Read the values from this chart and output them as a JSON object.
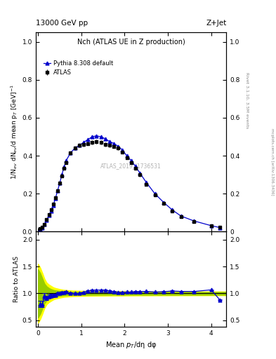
{
  "title_top": "13000 GeV pp",
  "title_right": "Z+Jet",
  "panel_title": "Nch (ATLAS UE in Z production)",
  "watermark": "ATLAS_2019_I1736531",
  "right_label": "Rivet 3.1.10, 3.5M events",
  "right_label2": "mcplots.cern.ch [arXiv:1306.3436]",
  "ylabel_main": "1/N$_{ev}$ dN$_{ev}$/d mean p$_{T}$ [GeV]$^{-1}$",
  "ylabel_ratio": "Ratio to ATLAS",
  "xlabel": "Mean $p_{T}$/dη dφ",
  "xlim": [
    -0.05,
    4.35
  ],
  "ylim_main": [
    0,
    1.05
  ],
  "ylim_ratio": [
    0.38,
    2.15
  ],
  "atlas_x": [
    0.05,
    0.1,
    0.15,
    0.2,
    0.25,
    0.3,
    0.35,
    0.4,
    0.45,
    0.5,
    0.55,
    0.6,
    0.65,
    0.75,
    0.85,
    0.95,
    1.05,
    1.15,
    1.25,
    1.35,
    1.45,
    1.55,
    1.65,
    1.75,
    1.85,
    1.95,
    2.05,
    2.15,
    2.25,
    2.35,
    2.5,
    2.7,
    2.9,
    3.1,
    3.3,
    3.6,
    4.0,
    4.2
  ],
  "atlas_y": [
    0.015,
    0.025,
    0.04,
    0.065,
    0.09,
    0.115,
    0.145,
    0.18,
    0.215,
    0.255,
    0.295,
    0.335,
    0.365,
    0.415,
    0.44,
    0.455,
    0.46,
    0.465,
    0.47,
    0.475,
    0.47,
    0.46,
    0.455,
    0.45,
    0.44,
    0.42,
    0.39,
    0.365,
    0.335,
    0.3,
    0.25,
    0.195,
    0.15,
    0.11,
    0.08,
    0.055,
    0.03,
    0.025
  ],
  "atlas_yerr": [
    0.003,
    0.003,
    0.004,
    0.005,
    0.005,
    0.006,
    0.006,
    0.007,
    0.007,
    0.008,
    0.008,
    0.009,
    0.009,
    0.009,
    0.01,
    0.01,
    0.01,
    0.01,
    0.01,
    0.01,
    0.01,
    0.01,
    0.01,
    0.01,
    0.01,
    0.01,
    0.009,
    0.009,
    0.009,
    0.009,
    0.009,
    0.008,
    0.007,
    0.007,
    0.006,
    0.006,
    0.005,
    0.005
  ],
  "pythia_x": [
    0.05,
    0.1,
    0.15,
    0.2,
    0.25,
    0.3,
    0.35,
    0.4,
    0.45,
    0.5,
    0.55,
    0.6,
    0.65,
    0.75,
    0.85,
    0.95,
    1.05,
    1.15,
    1.25,
    1.35,
    1.45,
    1.55,
    1.65,
    1.75,
    1.85,
    1.95,
    2.05,
    2.15,
    2.25,
    2.35,
    2.5,
    2.7,
    2.9,
    3.1,
    3.3,
    3.6,
    4.0,
    4.2
  ],
  "pythia_y": [
    0.012,
    0.02,
    0.038,
    0.06,
    0.085,
    0.11,
    0.14,
    0.175,
    0.215,
    0.255,
    0.3,
    0.34,
    0.375,
    0.415,
    0.44,
    0.455,
    0.47,
    0.485,
    0.5,
    0.505,
    0.5,
    0.49,
    0.475,
    0.465,
    0.45,
    0.43,
    0.4,
    0.375,
    0.345,
    0.31,
    0.26,
    0.2,
    0.155,
    0.115,
    0.083,
    0.057,
    0.032,
    0.022
  ],
  "ratio_y": [
    0.8,
    0.8,
    0.95,
    0.92,
    0.944,
    0.957,
    0.966,
    0.972,
    1.0,
    1.0,
    1.017,
    1.015,
    1.027,
    1.0,
    1.0,
    1.0,
    1.022,
    1.043,
    1.064,
    1.063,
    1.064,
    1.065,
    1.044,
    1.033,
    1.023,
    1.024,
    1.026,
    1.027,
    1.03,
    1.033,
    1.04,
    1.026,
    1.033,
    1.045,
    1.038,
    1.036,
    1.067,
    0.88
  ],
  "ratio_yerr": [
    0.06,
    0.06,
    0.05,
    0.04,
    0.035,
    0.03,
    0.025,
    0.022,
    0.02,
    0.018,
    0.016,
    0.015,
    0.014,
    0.013,
    0.012,
    0.011,
    0.011,
    0.011,
    0.011,
    0.011,
    0.011,
    0.011,
    0.011,
    0.011,
    0.011,
    0.011,
    0.011,
    0.011,
    0.011,
    0.011,
    0.01,
    0.01,
    0.01,
    0.01,
    0.01,
    0.01,
    0.01,
    0.01
  ],
  "band_x": [
    0.0,
    0.05,
    0.1,
    0.15,
    0.2,
    0.25,
    0.3,
    0.35,
    0.4,
    0.5,
    0.6,
    0.7,
    0.8,
    1.0,
    1.5,
    2.0,
    2.5,
    3.0,
    3.5,
    4.0,
    4.35
  ],
  "green_low": [
    0.55,
    0.62,
    0.72,
    0.82,
    0.87,
    0.9,
    0.92,
    0.935,
    0.945,
    0.955,
    0.963,
    0.967,
    0.97,
    0.972,
    0.975,
    0.975,
    0.975,
    0.975,
    0.975,
    0.975,
    0.975
  ],
  "green_high": [
    1.45,
    1.38,
    1.28,
    1.18,
    1.13,
    1.1,
    1.08,
    1.065,
    1.055,
    1.045,
    1.037,
    1.033,
    1.03,
    1.028,
    1.025,
    1.025,
    1.025,
    1.025,
    1.025,
    1.025,
    1.025
  ],
  "yellow_low": [
    0.45,
    0.52,
    0.62,
    0.73,
    0.8,
    0.835,
    0.86,
    0.885,
    0.9,
    0.92,
    0.935,
    0.942,
    0.948,
    0.953,
    0.958,
    0.96,
    0.962,
    0.963,
    0.964,
    0.965,
    0.965
  ],
  "yellow_high": [
    1.55,
    1.48,
    1.38,
    1.27,
    1.2,
    1.165,
    1.14,
    1.115,
    1.1,
    1.08,
    1.065,
    1.058,
    1.052,
    1.047,
    1.042,
    1.04,
    1.038,
    1.037,
    1.036,
    1.035,
    1.035
  ],
  "color_atlas": "#000000",
  "color_pythia": "#0000cc",
  "color_green": "#99cc00",
  "color_yellow": "#ffff00",
  "atlas_label": "ATLAS",
  "pythia_label": "Pythia 8.308 default",
  "yticks_main": [
    0,
    0.2,
    0.4,
    0.6,
    0.8,
    1.0
  ],
  "yticks_ratio": [
    0.5,
    1.0,
    1.5,
    2.0
  ],
  "xticks": [
    0,
    1,
    2,
    3,
    4
  ]
}
